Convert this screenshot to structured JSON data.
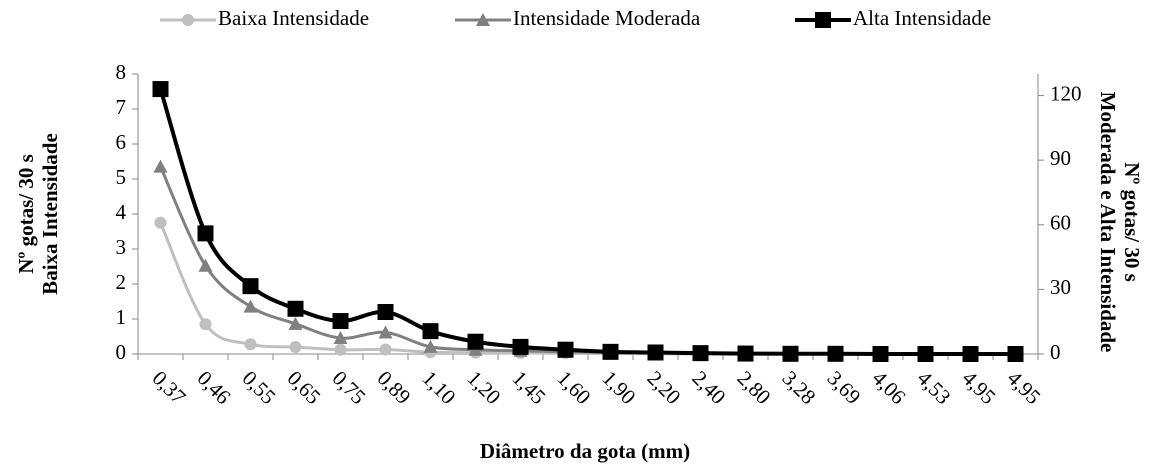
{
  "chart_data": {
    "type": "line",
    "categories": [
      "0,37",
      "0,46",
      "0,55",
      "0,65",
      "0,75",
      "0,89",
      "1,10",
      "1,20",
      "1,45",
      "1,60",
      "1,90",
      "2,20",
      "2,40",
      "2,80",
      "3,28",
      "3,69",
      "4,06",
      "4,53",
      "4,95",
      "4,95"
    ],
    "x_label": "Diâmetro da gota (mm)",
    "y_label": [
      "Nº gotas/ 30 s",
      "Baixa Intensidade"
    ],
    "y2_label": [
      "Nº gotas/ 30 s",
      "Moderada e Alta Intensidade"
    ],
    "ylim": [
      0,
      8
    ],
    "yticks": [
      0,
      1,
      2,
      3,
      4,
      5,
      6,
      7,
      8
    ],
    "y2lim": [
      0,
      130
    ],
    "y2ticks": [
      0,
      30,
      60,
      90,
      120
    ],
    "legend": "top",
    "series": [
      {
        "name": "Baixa Intensidade",
        "color": "#bfbfbf",
        "marker": "circle",
        "values": [
          3.75,
          0.85,
          0.28,
          0.2,
          0.12,
          0.13,
          0.05,
          0.04,
          0.03,
          0.02,
          0.01,
          0.01,
          0,
          0,
          0,
          0,
          0,
          0,
          0,
          0
        ]
      },
      {
        "name": "Intensidade Moderada",
        "color": "#808080",
        "marker": "triangle",
        "axis": "y2",
        "values": [
          87,
          41,
          22,
          14,
          7.4,
          10,
          3.3,
          2,
          1.5,
          1,
          0.8,
          0.5,
          0.3,
          0.2,
          0.1,
          0.1,
          0,
          0,
          0,
          0
        ]
      },
      {
        "name": "Alta Intensidade",
        "color": "#000000",
        "marker": "square",
        "axis": "y2",
        "values": [
          123,
          56,
          31.5,
          21,
          15.3,
          19.5,
          10.6,
          5.7,
          3.3,
          2,
          1,
          0.7,
          0.4,
          0.2,
          0.1,
          0.1,
          0,
          0,
          0,
          0
        ]
      }
    ]
  }
}
